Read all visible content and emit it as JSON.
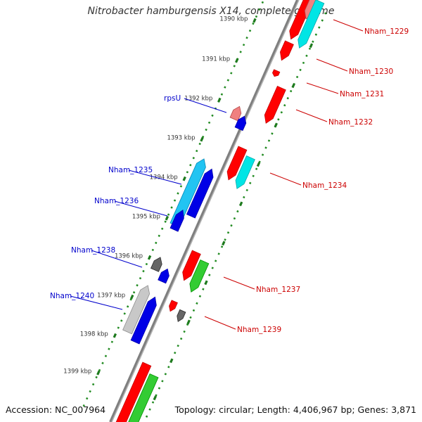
{
  "title": "Nitrobacter hamburgensis X14, complete genome",
  "footer": {
    "accession": "Accession: NC_007964",
    "topology": "Topology: circular; Length: 4,406,967 bp; Genes: 3,871"
  },
  "colors": {
    "red": "#ff0000",
    "pink": "#f08080",
    "cyan": "#00e5e5",
    "light_blue": "#22c4f2",
    "blue": "#0000e6",
    "green": "#33cc33",
    "dark_gray": "#666666",
    "light_gray": "#c8c8c8",
    "backbone": "#7f7f7f",
    "ticks": "#228b22",
    "label_red": "#cc0000",
    "label_blue": "#0000cc"
  },
  "ticks": [
    "1390 kbp",
    "1391 kbp",
    "1392 kbp",
    "1393 kbp",
    "1394 kbp",
    "1395 kbp",
    "1396 kbp",
    "1397 kbp",
    "1398 kbp",
    "1399 kbp"
  ],
  "genes_left": [
    {
      "label": "rpsU",
      "color": "blue"
    },
    {
      "label": "Nham_1235",
      "color": "blue"
    },
    {
      "label": "Nham_1236",
      "color": "blue"
    },
    {
      "label": "Nham_1238",
      "color": "blue"
    },
    {
      "label": "Nham_1240",
      "color": "blue"
    }
  ],
  "genes_right": [
    {
      "label": "Nham_1229",
      "color": "red"
    },
    {
      "label": "Nham_1230",
      "color": "red"
    },
    {
      "label": "Nham_1231",
      "color": "red"
    },
    {
      "label": "Nham_1232",
      "color": "red"
    },
    {
      "label": "Nham_1234",
      "color": "red"
    },
    {
      "label": "Nham_1237",
      "color": "red"
    },
    {
      "label": "Nham_1239",
      "color": "red"
    }
  ]
}
